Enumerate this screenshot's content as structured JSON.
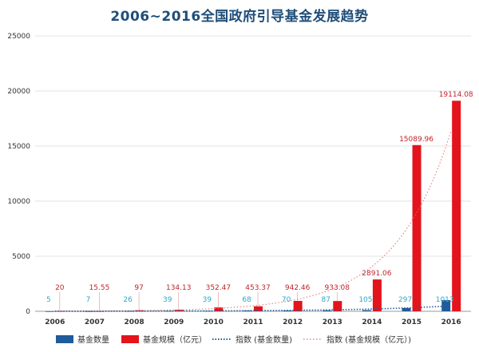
{
  "title": "2006~2016全国政府引导基金发展趋势",
  "chart_data": {
    "type": "bar",
    "title": "2006~2016全国政府引导基金发展趋势",
    "categories": [
      "2006",
      "2007",
      "2008",
      "2009",
      "2010",
      "2011",
      "2012",
      "2013",
      "2014",
      "2015",
      "2016"
    ],
    "ylim": [
      0,
      25000
    ],
    "yticks": [
      "0",
      "5000",
      "10000",
      "15000",
      "20000",
      "25000"
    ],
    "grid": true,
    "legend_position": "bottom",
    "series": [
      {
        "name": "基金数量",
        "color": "#1f5c99",
        "values": [
          5,
          7,
          26,
          39,
          39,
          68,
          70,
          87,
          105,
          297,
          1013
        ],
        "labels": [
          "5",
          "7",
          "26",
          "39",
          "39",
          "68",
          "70",
          "87",
          "105",
          "297",
          "1013"
        ]
      },
      {
        "name": "基金规模（亿元）",
        "color": "#e3141b",
        "values": [
          20,
          15.55,
          97,
          134.13,
          352.47,
          453.37,
          942.46,
          933.08,
          2891.06,
          15089.96,
          19114.08
        ],
        "labels": [
          "20",
          "15.55",
          "97",
          "134.13",
          "352.47",
          "453.37",
          "942.46",
          "933.08",
          "2891.06",
          "15089.96",
          "19114.08"
        ]
      }
    ],
    "trendlines": [
      {
        "name": "指数 (基金数量)",
        "color": "#1f5c99"
      },
      {
        "name": "指数 (基金规模（亿元）)",
        "color": "#e07070"
      }
    ]
  }
}
